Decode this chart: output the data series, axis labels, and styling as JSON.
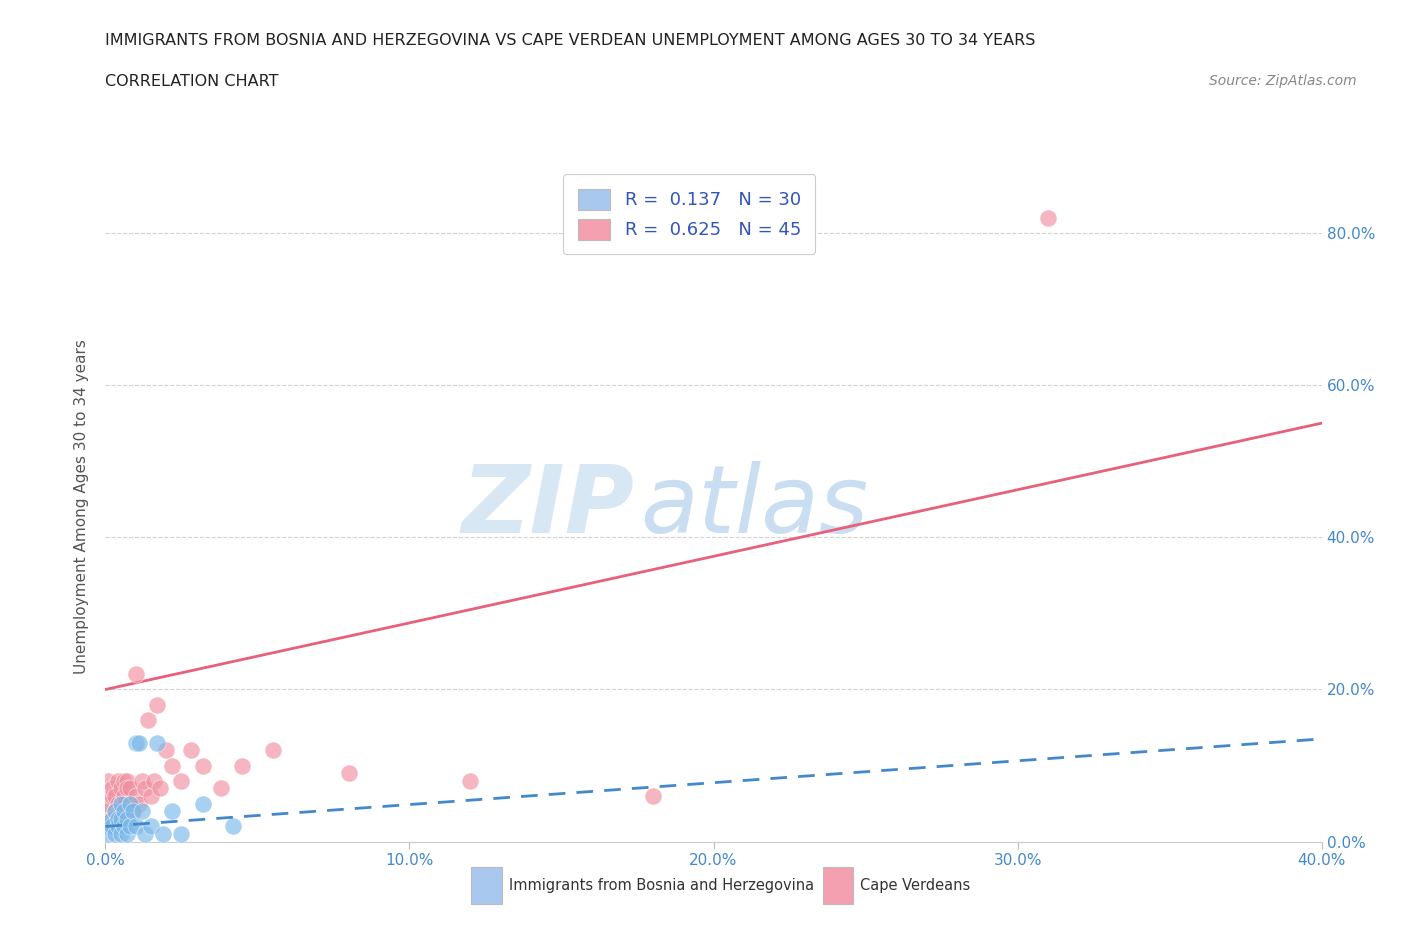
{
  "title_line1": "IMMIGRANTS FROM BOSNIA AND HERZEGOVINA VS CAPE VERDEAN UNEMPLOYMENT AMONG AGES 30 TO 34 YEARS",
  "title_line2": "CORRELATION CHART",
  "source_text": "Source: ZipAtlas.com",
  "ylabel": "Unemployment Among Ages 30 to 34 years",
  "xlim": [
    0.0,
    0.4
  ],
  "ylim": [
    0.0,
    0.88
  ],
  "xtick_vals": [
    0.0,
    0.1,
    0.2,
    0.3,
    0.4
  ],
  "xtick_labels": [
    "0.0%",
    "10.0%",
    "20.0%",
    "30.0%",
    "40.0%"
  ],
  "ytick_vals": [
    0.0,
    0.2,
    0.4,
    0.6,
    0.8
  ],
  "ytick_labels": [
    "0.0%",
    "20.0%",
    "40.0%",
    "60.0%",
    "80.0%"
  ],
  "legend1_label": "R =  0.137   N = 30",
  "legend2_label": "R =  0.625   N = 45",
  "legend_color1": "#a8c8f0",
  "legend_color2": "#f4a0b0",
  "watermark_zip": "ZIP",
  "watermark_atlas": "atlas",
  "blue_color": "#7ab8e8",
  "pink_color": "#f090a0",
  "blue_line_color": "#4488cc",
  "pink_line_color": "#e8607a",
  "grid_color": "#cccccc",
  "axis_label_color": "#555555",
  "right_tick_color": "#4488cc",
  "bottom_tick_color": "#4488cc",
  "pink_line_x0": 0.0,
  "pink_line_y0": 0.2,
  "pink_line_x1": 0.4,
  "pink_line_y1": 0.55,
  "blue_line_x0": 0.0,
  "blue_line_y0": 0.02,
  "blue_line_x1": 0.4,
  "blue_line_y1": 0.135,
  "bosnia_x": [
    0.001,
    0.001,
    0.002,
    0.002,
    0.003,
    0.003,
    0.004,
    0.004,
    0.005,
    0.005,
    0.005,
    0.006,
    0.006,
    0.007,
    0.007,
    0.008,
    0.008,
    0.009,
    0.01,
    0.01,
    0.011,
    0.012,
    0.013,
    0.015,
    0.017,
    0.019,
    0.022,
    0.025,
    0.032,
    0.042
  ],
  "bosnia_y": [
    0.02,
    0.01,
    0.03,
    0.02,
    0.01,
    0.04,
    0.02,
    0.03,
    0.01,
    0.03,
    0.05,
    0.02,
    0.04,
    0.01,
    0.03,
    0.05,
    0.02,
    0.04,
    0.02,
    0.13,
    0.13,
    0.04,
    0.01,
    0.02,
    0.13,
    0.01,
    0.04,
    0.01,
    0.05,
    0.02
  ],
  "capeverde_x": [
    0.001,
    0.001,
    0.001,
    0.002,
    0.002,
    0.002,
    0.003,
    0.003,
    0.003,
    0.004,
    0.004,
    0.004,
    0.005,
    0.005,
    0.005,
    0.006,
    0.006,
    0.006,
    0.007,
    0.007,
    0.008,
    0.008,
    0.009,
    0.01,
    0.01,
    0.011,
    0.012,
    0.013,
    0.014,
    0.015,
    0.016,
    0.017,
    0.018,
    0.02,
    0.022,
    0.025,
    0.028,
    0.032,
    0.038,
    0.045,
    0.055,
    0.08,
    0.12,
    0.18,
    0.31
  ],
  "capeverde_y": [
    0.04,
    0.08,
    0.05,
    0.06,
    0.03,
    0.07,
    0.04,
    0.02,
    0.06,
    0.08,
    0.05,
    0.03,
    0.07,
    0.05,
    0.04,
    0.08,
    0.06,
    0.05,
    0.08,
    0.07,
    0.07,
    0.05,
    0.04,
    0.22,
    0.06,
    0.05,
    0.08,
    0.07,
    0.16,
    0.06,
    0.08,
    0.18,
    0.07,
    0.12,
    0.1,
    0.08,
    0.12,
    0.1,
    0.07,
    0.1,
    0.12,
    0.09,
    0.08,
    0.06,
    0.82
  ]
}
